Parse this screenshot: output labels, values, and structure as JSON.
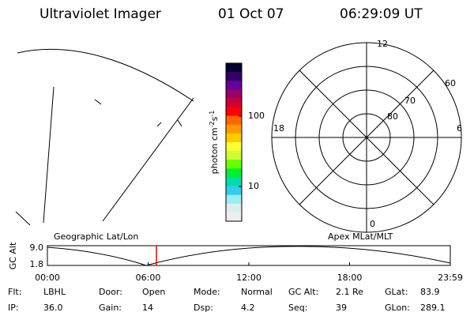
{
  "header": {
    "title": "Ultraviolet Imager",
    "date": "01 Oct 07",
    "time": "06:29:09 UT"
  },
  "colorbar": {
    "label": [
      "photon cm",
      "-2",
      "s",
      "-1"
    ],
    "ticks": [
      "100",
      "10"
    ]
  },
  "polar": {
    "mlt_labels": [
      "12",
      "6",
      "18",
      "0"
    ],
    "lat_labels": [
      "60",
      "70",
      "80"
    ]
  },
  "timeline": {
    "y_label": "GC Alt",
    "yticks": [
      "9.0",
      "1.8"
    ],
    "left_title": "Geographic Lat/Lon",
    "right_title": "Apex MLat/MLT",
    "xticks": [
      "00:00",
      "06:00",
      "12:00",
      "18:00",
      "23:59"
    ]
  },
  "footer": {
    "rows": [
      [
        [
          "Flt:",
          "LBHL"
        ],
        [
          "Door:",
          "Open"
        ],
        [
          "Mode:",
          "Normal"
        ],
        [
          "GC Alt:",
          "2.1 Re"
        ],
        [
          "GLat:",
          "83.9"
        ]
      ],
      [
        [
          "IP:",
          "36.0"
        ],
        [
          "Gain:",
          "14"
        ],
        [
          "Dsp:",
          "4.2"
        ],
        [
          "Seq:",
          "39"
        ],
        [
          "GLon:",
          "289.1"
        ]
      ]
    ]
  }
}
